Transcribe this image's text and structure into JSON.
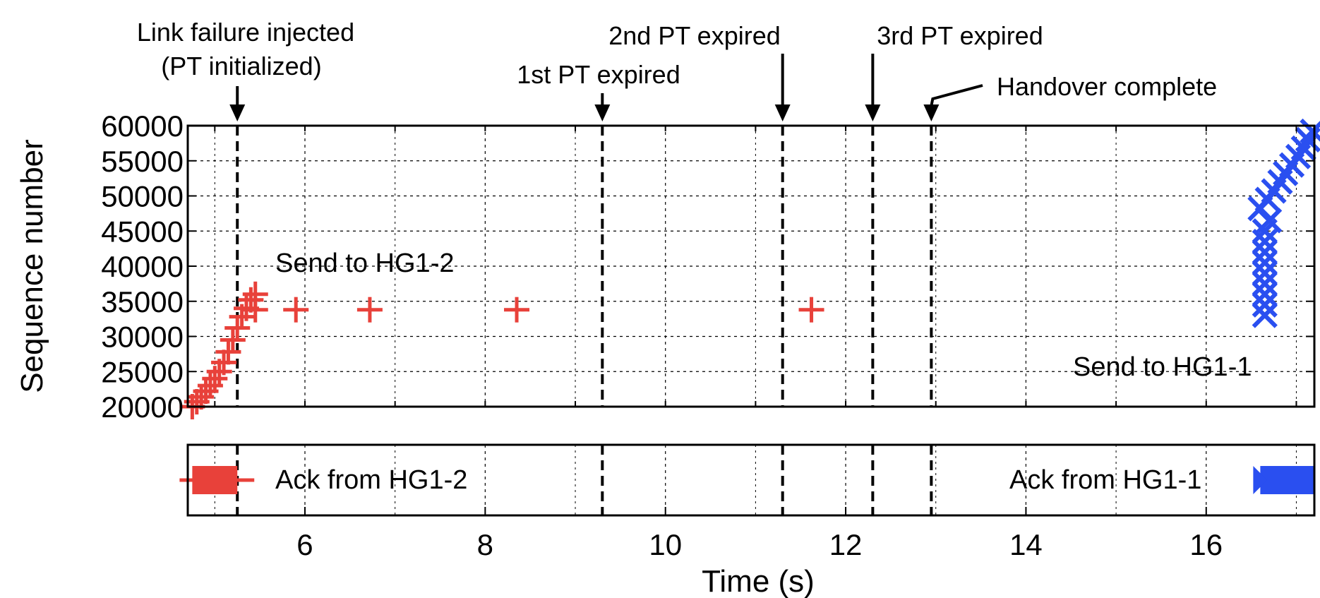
{
  "chart_data": {
    "type": "scatter",
    "xlabel": "Time (s)",
    "ylabel": "Sequence number",
    "xlim": [
      4.7,
      17.2
    ],
    "ylim": [
      20000,
      60000
    ],
    "xticks": [
      6,
      8,
      10,
      12,
      14,
      16
    ],
    "yticks": [
      20000,
      25000,
      30000,
      35000,
      40000,
      45000,
      50000,
      55000,
      60000
    ],
    "grid": true,
    "event_markers": [
      {
        "label": "Link failure injected\n(PT initialized)",
        "x": 5.25
      },
      {
        "label": "1st PT expired",
        "x": 9.3
      },
      {
        "label": "2nd PT expired",
        "x": 11.3
      },
      {
        "label": "3rd PT expired",
        "x": 12.3
      },
      {
        "label": "Handover complete",
        "x": 12.95
      }
    ],
    "panels": [
      {
        "name": "send",
        "series": [
          {
            "name": "Send to HG1-2",
            "marker": "+",
            "color": "#e8413a",
            "points": [
              [
                4.75,
                20000
              ],
              [
                4.8,
                20700
              ],
              [
                4.85,
                21400
              ],
              [
                4.9,
                22200
              ],
              [
                4.95,
                23000
              ],
              [
                5.0,
                24000
              ],
              [
                5.05,
                25000
              ],
              [
                5.1,
                26300
              ],
              [
                5.15,
                27800
              ],
              [
                5.2,
                29500
              ],
              [
                5.25,
                31200
              ],
              [
                5.3,
                32800
              ],
              [
                5.35,
                34000
              ],
              [
                5.4,
                35200
              ],
              [
                5.45,
                36000
              ],
              [
                5.45,
                33800
              ],
              [
                5.9,
                33800
              ],
              [
                6.72,
                33800
              ],
              [
                8.35,
                33800
              ],
              [
                11.62,
                33800
              ]
            ]
          },
          {
            "name": "Send to HG1-1",
            "marker": "x",
            "color": "#2a4ff0",
            "points": [
              [
                16.65,
                33000
              ],
              [
                16.65,
                34500
              ],
              [
                16.65,
                36000
              ],
              [
                16.65,
                37500
              ],
              [
                16.65,
                39000
              ],
              [
                16.65,
                40500
              ],
              [
                16.65,
                42000
              ],
              [
                16.65,
                43500
              ],
              [
                16.65,
                45000
              ],
              [
                16.7,
                46500
              ],
              [
                16.6,
                48200
              ],
              [
                16.68,
                49500
              ],
              [
                16.75,
                50700
              ],
              [
                16.82,
                52000
              ],
              [
                16.88,
                53200
              ],
              [
                16.95,
                54400
              ],
              [
                17.02,
                55600
              ],
              [
                17.08,
                56800
              ],
              [
                17.13,
                58000
              ],
              [
                17.18,
                59200
              ]
            ]
          }
        ]
      },
      {
        "name": "ack",
        "series": [
          {
            "name": "Ack from HG1-2",
            "color": "#e8413a",
            "xrange": [
              4.75,
              5.25
            ]
          },
          {
            "name": "Ack from HG1-1",
            "color": "#2a4ff0",
            "xrange": [
              16.6,
              17.2
            ]
          }
        ]
      }
    ]
  }
}
